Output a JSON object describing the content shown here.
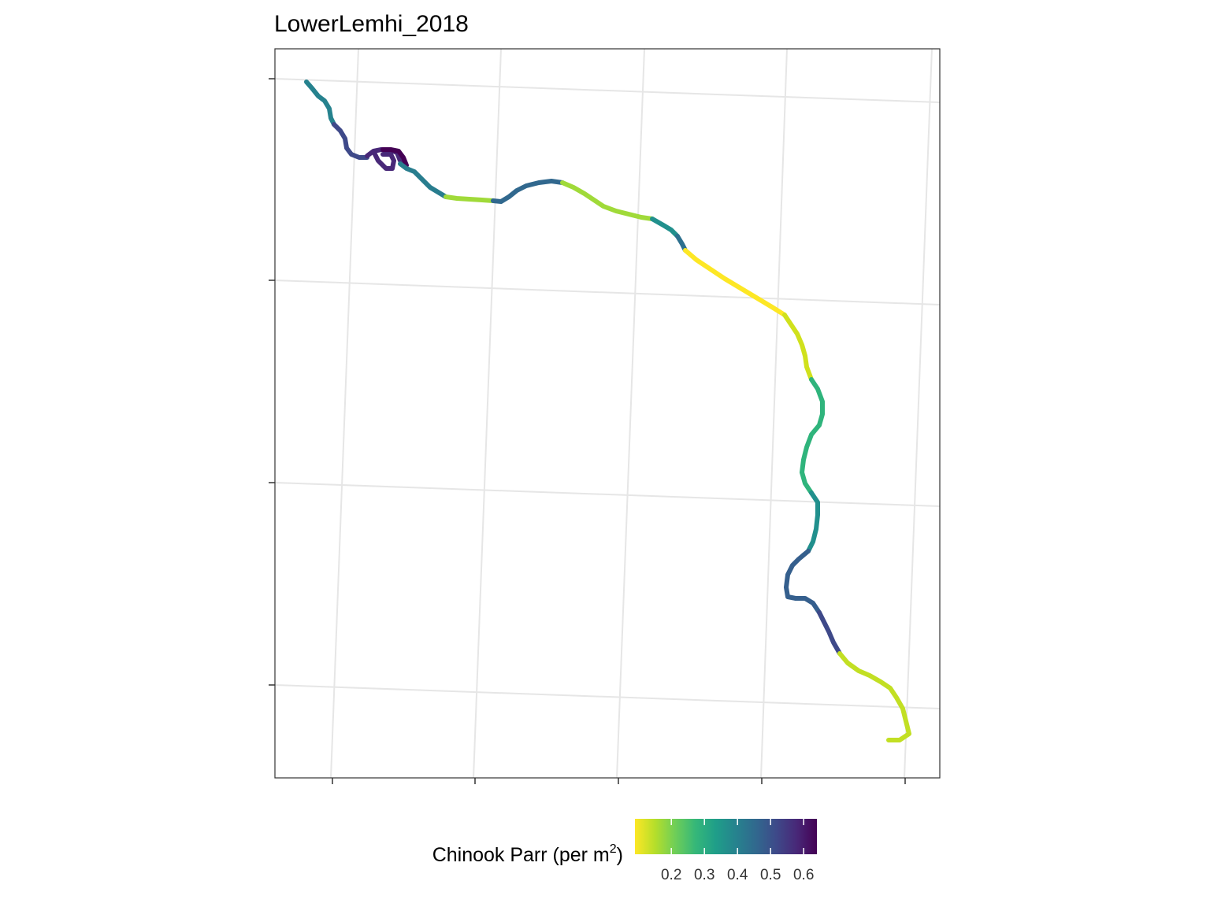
{
  "map": {
    "title": "LowerLemhi_2018",
    "graticule": true,
    "axis_tick_labels_shown": false,
    "legend": {
      "title_prefix": "Chinook Parr (per m",
      "title_superscript": "2",
      "title_suffix": ")",
      "position": "bottom",
      "palette": "viridis (reversed)",
      "colors": [
        "#fde725",
        "#b5de2b",
        "#6ece58",
        "#35b779",
        "#1f9e89",
        "#26828e",
        "#31688e",
        "#3e4989",
        "#482878",
        "#440154"
      ],
      "range": [
        0.09,
        0.64
      ],
      "ticks": [
        0.2,
        0.3,
        0.4,
        0.5,
        0.6
      ],
      "tick_labels": [
        "0.2",
        "0.3",
        "0.4",
        "0.5",
        "0.6"
      ]
    }
  },
  "river_segments": [
    {
      "value": 0.43,
      "color": "#26828e"
    },
    {
      "value": 0.55,
      "color": "#3e4989"
    },
    {
      "value": 0.6,
      "color": "#482878"
    },
    {
      "value": 0.64,
      "color": "#440154"
    },
    {
      "value": 0.42,
      "color": "#287d8e"
    },
    {
      "value": 0.2,
      "color": "#a0da39"
    },
    {
      "value": 0.47,
      "color": "#31688e"
    },
    {
      "value": 0.2,
      "color": "#a0da39"
    },
    {
      "value": 0.38,
      "color": "#21908d"
    },
    {
      "value": 0.45,
      "color": "#2d708e"
    },
    {
      "value": 0.1,
      "color": "#fde725"
    },
    {
      "value": 0.15,
      "color": "#d0e11c"
    },
    {
      "value": 0.33,
      "color": "#2fb47c"
    },
    {
      "value": 0.38,
      "color": "#21908d"
    },
    {
      "value": 0.49,
      "color": "#355f8d"
    },
    {
      "value": 0.55,
      "color": "#3e4989"
    },
    {
      "value": 0.17,
      "color": "#c2df23"
    },
    {
      "value": 0.56,
      "color": "#433e85"
    }
  ]
}
